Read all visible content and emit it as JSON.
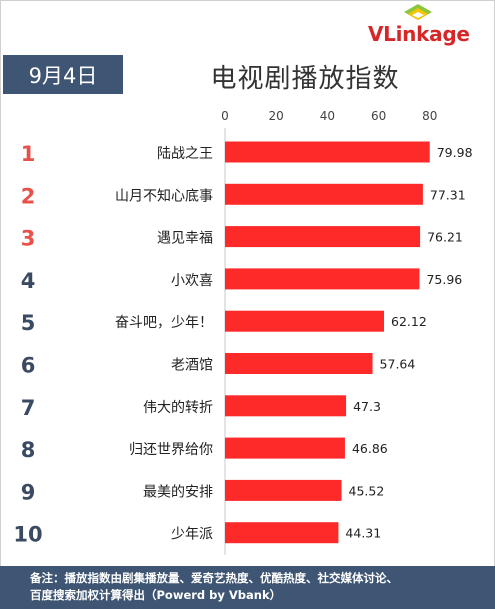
{
  "logo": {
    "text_v": "VL",
    "text_rest": "inkage"
  },
  "header": {
    "date": "9月4日",
    "title": "电视剧播放指数"
  },
  "chart_data": {
    "type": "bar",
    "orientation": "horizontal",
    "categories": [
      "陆战之王",
      "山月不知心底事",
      "遇见幸福",
      "小欢喜",
      "奋斗吧，少年！",
      "老酒馆",
      "伟大的转折",
      "归还世界给你",
      "最美的安排",
      "少年派"
    ],
    "ranks": [
      "1",
      "2",
      "3",
      "4",
      "5",
      "6",
      "7",
      "8",
      "9",
      "10"
    ],
    "values": [
      79.98,
      77.31,
      76.21,
      75.96,
      62.12,
      57.64,
      47.3,
      46.86,
      45.52,
      44.31
    ],
    "value_labels": [
      "79.98",
      "77.31",
      "76.21",
      "75.96",
      "62.12",
      "57.64",
      "47.3",
      "46.86",
      "45.52",
      "44.31"
    ],
    "xticks": [
      "0",
      "20",
      "40",
      "60",
      "80"
    ],
    "xlim": [
      0,
      80
    ],
    "bar_color": "#fe2a2a",
    "rank_colors": {
      "top3": "#e8504a",
      "rest": "#3b4a63"
    },
    "title": "电视剧播放指数"
  },
  "footer": {
    "line1": "备注：播放指数由剧集播放量、爱奇艺热度、优酷热度、社交媒体讨论、",
    "line2": "百度搜索加权计算得出（Powerd by Vbank）"
  }
}
